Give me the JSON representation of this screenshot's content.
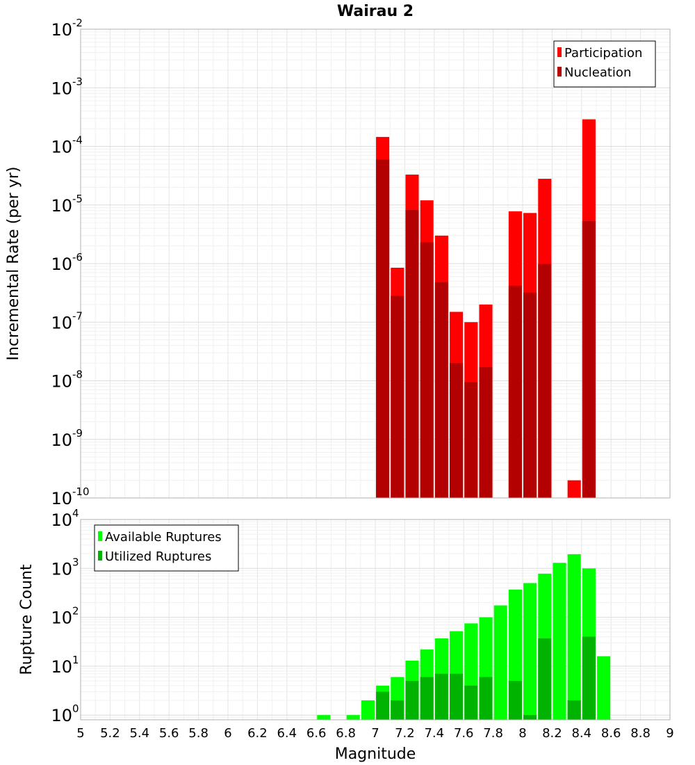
{
  "chart_data": [
    {
      "type": "bar",
      "title": "Wairau 2",
      "xlabel": "",
      "ylabel": "Incremental Rate (per yr)",
      "y_scale": "log",
      "xlim": [
        5,
        9
      ],
      "ylim": [
        1e-10,
        0.01
      ],
      "y_ticks": [
        {
          "base": "10",
          "exp": "-10",
          "value": 1e-10
        },
        {
          "base": "10",
          "exp": "-9",
          "value": 1e-09
        },
        {
          "base": "10",
          "exp": "-8",
          "value": 1e-08
        },
        {
          "base": "10",
          "exp": "-7",
          "value": 1e-07
        },
        {
          "base": "10",
          "exp": "-6",
          "value": 1e-06
        },
        {
          "base": "10",
          "exp": "-5",
          "value": 1e-05
        },
        {
          "base": "10",
          "exp": "-4",
          "value": 0.0001
        },
        {
          "base": "10",
          "exp": "-3",
          "value": 0.001
        },
        {
          "base": "10",
          "exp": "-2",
          "value": 0.01
        }
      ],
      "grid": true,
      "legend_position": "top-right",
      "bar_width": 0.09,
      "series": [
        {
          "name": "Participation",
          "color": "#ff0000",
          "x": [
            7.05,
            7.15,
            7.25,
            7.35,
            7.45,
            7.55,
            7.65,
            7.75,
            7.95,
            8.05,
            8.15,
            8.35,
            8.45
          ],
          "values": [
            0.000145,
            8.5e-07,
            3.3e-05,
            1.2e-05,
            3e-06,
            1.5e-07,
            1e-07,
            2e-07,
            7.8e-06,
            7.3e-06,
            2.8e-05,
            2e-10,
            0.00029
          ]
        },
        {
          "name": "Nucleation",
          "color": "#b30000",
          "x": [
            7.05,
            7.15,
            7.25,
            7.35,
            7.45,
            7.55,
            7.65,
            7.75,
            7.95,
            8.05,
            8.15,
            8.45
          ],
          "values": [
            6e-05,
            2.8e-07,
            8.2e-06,
            2.3e-06,
            4.8e-07,
            2e-08,
            9.5e-09,
            1.7e-08,
            4.2e-07,
            3.2e-07,
            9.8e-07,
            5.3e-06
          ]
        }
      ]
    },
    {
      "type": "bar",
      "title": "",
      "xlabel": "Magnitude",
      "ylabel": "Rupture Count",
      "y_scale": "log",
      "xlim": [
        5,
        9
      ],
      "ylim": [
        0.8,
        10000
      ],
      "x_ticks": [
        "5",
        "5.2",
        "5.4",
        "5.6",
        "5.8",
        "6",
        "6.2",
        "6.4",
        "6.6",
        "6.8",
        "7",
        "7.2",
        "7.4",
        "7.6",
        "7.8",
        "8",
        "8.2",
        "8.4",
        "8.6",
        "8.8",
        "9"
      ],
      "y_ticks": [
        {
          "base": "10",
          "exp": "0",
          "value": 1
        },
        {
          "base": "10",
          "exp": "1",
          "value": 10
        },
        {
          "base": "10",
          "exp": "2",
          "value": 100
        },
        {
          "base": "10",
          "exp": "3",
          "value": 1000
        },
        {
          "base": "10",
          "exp": "4",
          "value": 10000
        }
      ],
      "grid": true,
      "legend_position": "top-left",
      "bar_width": 0.09,
      "series": [
        {
          "name": "Available Ruptures",
          "color": "#00ff00",
          "x": [
            6.65,
            6.85,
            6.95,
            7.05,
            7.15,
            7.25,
            7.35,
            7.45,
            7.55,
            7.65,
            7.75,
            7.85,
            7.95,
            8.05,
            8.15,
            8.25,
            8.35,
            8.45,
            8.55
          ],
          "values": [
            1,
            1,
            2,
            4,
            6,
            13,
            22,
            37,
            52,
            75,
            100,
            175,
            370,
            500,
            780,
            1300,
            1950,
            1000,
            16
          ]
        },
        {
          "name": "Utilized Ruptures",
          "color": "#00b300",
          "x": [
            7.05,
            7.15,
            7.25,
            7.35,
            7.45,
            7.55,
            7.65,
            7.75,
            7.95,
            8.05,
            8.15,
            8.35,
            8.45
          ],
          "values": [
            3,
            2,
            5,
            6,
            7,
            7,
            4,
            6,
            5,
            1,
            37,
            2,
            40
          ]
        }
      ]
    }
  ]
}
